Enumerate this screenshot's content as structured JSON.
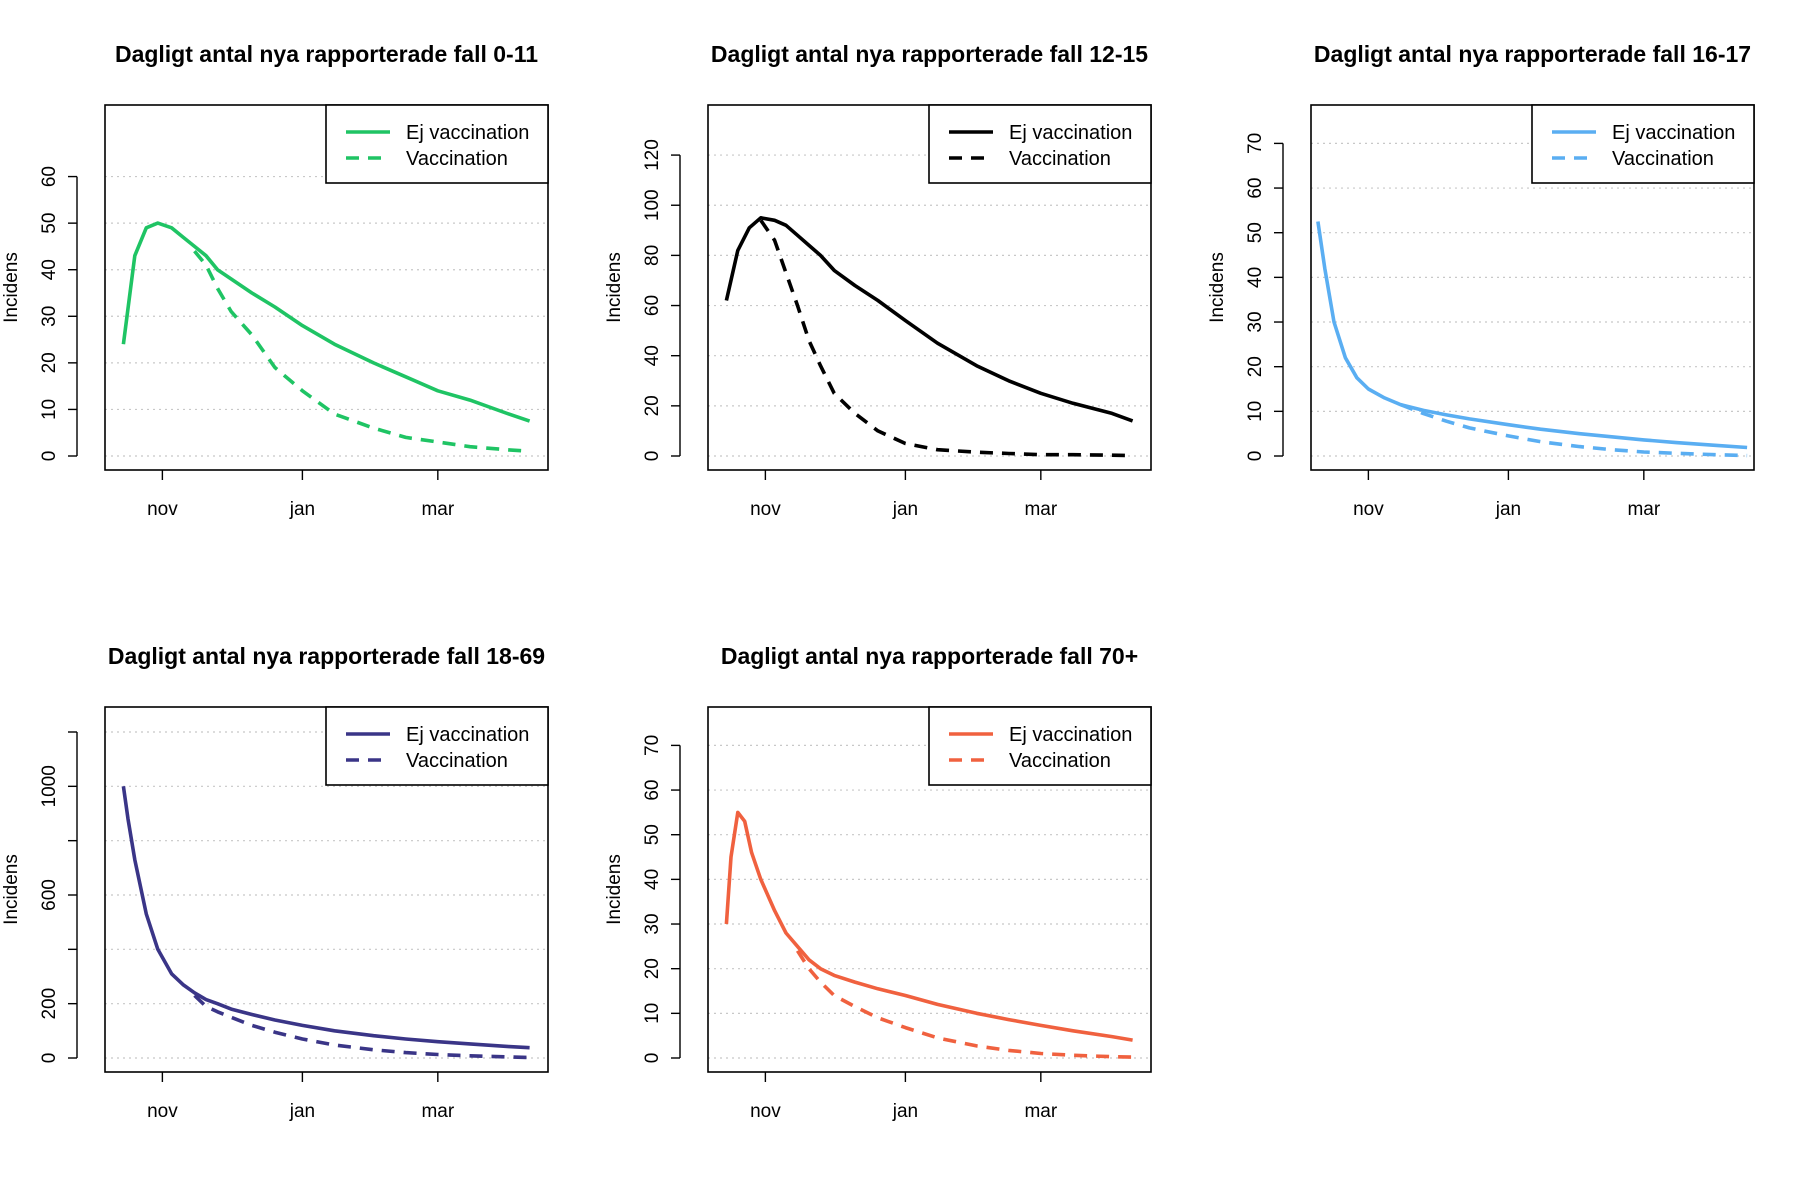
{
  "figure": {
    "legend_labels": [
      "Ej vaccination",
      "Vaccination"
    ],
    "x_tick_labels": [
      "nov",
      "jan",
      "mar"
    ]
  },
  "chart_data": [
    {
      "type": "line",
      "title": "Dagligt antal nya rapporterade fall 0-11",
      "xlabel": "",
      "ylabel": "Incidens",
      "color": "#1FC464",
      "ylim": [
        0,
        70
      ],
      "yticks": [
        0,
        10,
        20,
        30,
        40,
        50,
        60
      ],
      "xlim": [
        "2021-10-07",
        "2022-04-18"
      ],
      "xticks": [
        "2021-11-01",
        "2022-01-01",
        "2022-03-01"
      ],
      "grid": true,
      "legend_position": "top-right",
      "x": [
        "2021-10-15",
        "2021-10-20",
        "2021-10-25",
        "2021-10-30",
        "2021-11-05",
        "2021-11-10",
        "2021-11-15",
        "2021-11-20",
        "2021-11-25",
        "2021-12-01",
        "2021-12-10",
        "2021-12-20",
        "2022-01-01",
        "2022-01-15",
        "2022-02-01",
        "2022-02-15",
        "2022-03-01",
        "2022-03-15",
        "2022-04-01",
        "2022-04-10"
      ],
      "series": [
        {
          "name": "Ej vaccination",
          "line": "solid",
          "values": [
            24,
            43,
            49,
            50,
            49,
            47,
            45,
            43,
            40,
            38,
            35,
            32,
            28,
            24,
            20,
            17,
            14,
            12,
            9,
            7.5
          ]
        },
        {
          "name": "Vaccination",
          "line": "dashed",
          "values": [
            null,
            null,
            null,
            null,
            null,
            null,
            44,
            41,
            36,
            31,
            26,
            19,
            14,
            9,
            6,
            4,
            3,
            2,
            1.3,
            1
          ]
        }
      ]
    },
    {
      "type": "line",
      "title": "Dagligt antal nya rapporterade fall 12-15",
      "xlabel": "",
      "ylabel": "Incidens",
      "color": "#000000",
      "ylim": [
        0,
        130
      ],
      "yticks": [
        0,
        20,
        40,
        60,
        80,
        100,
        120
      ],
      "xlim": [
        "2021-10-07",
        "2022-04-18"
      ],
      "xticks": [
        "2021-11-01",
        "2022-01-01",
        "2022-03-01"
      ],
      "grid": true,
      "legend_position": "top-right",
      "x": [
        "2021-10-15",
        "2021-10-20",
        "2021-10-25",
        "2021-10-30",
        "2021-11-05",
        "2021-11-10",
        "2021-11-15",
        "2021-11-20",
        "2021-11-25",
        "2021-12-01",
        "2021-12-10",
        "2021-12-20",
        "2022-01-01",
        "2022-01-15",
        "2022-02-01",
        "2022-02-15",
        "2022-03-01",
        "2022-03-15",
        "2022-04-01",
        "2022-04-10"
      ],
      "series": [
        {
          "name": "Ej vaccination",
          "line": "solid",
          "values": [
            62,
            82,
            91,
            95,
            94,
            92,
            88,
            84,
            80,
            74,
            68,
            62,
            54,
            45,
            36,
            30,
            25,
            21,
            17,
            14
          ]
        },
        {
          "name": "Vaccination",
          "line": "dashed",
          "values": [
            null,
            null,
            null,
            94,
            86,
            73,
            60,
            46,
            36,
            25,
            17,
            10,
            5,
            2.5,
            1.5,
            1,
            0.5,
            0.5,
            0.3,
            0.2
          ]
        }
      ]
    },
    {
      "type": "line",
      "title": "Dagligt antal nya rapporterade fall 16-17",
      "xlabel": "",
      "ylabel": "Incidens",
      "color": "#5AAEF2",
      "ylim": [
        0,
        73
      ],
      "yticks": [
        0,
        10,
        20,
        30,
        40,
        50,
        60,
        70
      ],
      "xlim": [
        "2021-10-07",
        "2022-04-18"
      ],
      "xticks": [
        "2021-11-01",
        "2022-01-01",
        "2022-03-01"
      ],
      "grid": true,
      "legend_position": "top-right",
      "x": [
        "2021-10-10",
        "2021-10-13",
        "2021-10-17",
        "2021-10-22",
        "2021-10-27",
        "2021-11-01",
        "2021-11-08",
        "2021-11-15",
        "2021-11-25",
        "2021-12-05",
        "2021-12-15",
        "2022-01-01",
        "2022-01-15",
        "2022-02-01",
        "2022-02-15",
        "2022-03-01",
        "2022-03-15",
        "2022-04-01",
        "2022-04-15"
      ],
      "series": [
        {
          "name": "Ej vaccination",
          "line": "solid",
          "values": [
            52.5,
            42,
            30,
            22,
            17.5,
            15,
            13,
            11.5,
            10.2,
            9.2,
            8.3,
            7,
            6,
            5,
            4.3,
            3.6,
            3,
            2.4,
            1.9
          ]
        },
        {
          "name": "Vaccination",
          "line": "dashed",
          "values": [
            null,
            null,
            null,
            null,
            null,
            null,
            null,
            11.5,
            9.5,
            7.8,
            6.3,
            4.5,
            3.2,
            2.1,
            1.4,
            0.9,
            0.6,
            0.3,
            0.1
          ]
        }
      ]
    },
    {
      "type": "line",
      "title": "Dagligt antal nya rapporterade fall 18-69",
      "xlabel": "",
      "ylabel": "Incidens",
      "color": "#3A3587",
      "ylim": [
        0,
        1200
      ],
      "yticks": [
        0,
        200,
        600,
        1000
      ],
      "minor_yticks": [
        400,
        800,
        1200
      ],
      "xlim": [
        "2021-10-07",
        "2022-04-18"
      ],
      "xticks": [
        "2021-11-01",
        "2022-01-01",
        "2022-03-01"
      ],
      "grid": true,
      "legend_position": "top-right",
      "x": [
        "2021-10-15",
        "2021-10-17",
        "2021-10-20",
        "2021-10-25",
        "2021-10-30",
        "2021-11-05",
        "2021-11-10",
        "2021-11-15",
        "2021-11-20",
        "2021-11-25",
        "2021-12-01",
        "2021-12-10",
        "2021-12-20",
        "2022-01-01",
        "2022-01-15",
        "2022-02-01",
        "2022-02-15",
        "2022-03-01",
        "2022-03-15",
        "2022-04-01",
        "2022-04-10"
      ],
      "series": [
        {
          "name": "Ej vaccination",
          "line": "solid",
          "values": [
            1000,
            880,
            730,
            530,
            400,
            310,
            270,
            240,
            215,
            200,
            180,
            160,
            140,
            120,
            100,
            82,
            70,
            60,
            52,
            42,
            38
          ]
        },
        {
          "name": "Vaccination",
          "line": "dashed",
          "values": [
            null,
            null,
            null,
            null,
            null,
            null,
            null,
            230,
            190,
            170,
            150,
            120,
            95,
            70,
            48,
            30,
            20,
            13,
            8,
            4,
            2
          ]
        }
      ]
    },
    {
      "type": "line",
      "title": "Dagligt antal nya rapporterade fall 70+",
      "xlabel": "",
      "ylabel": "Incidens",
      "color": "#F0613F",
      "ylim": [
        0,
        73
      ],
      "yticks": [
        0,
        10,
        20,
        30,
        40,
        50,
        60,
        70
      ],
      "xlim": [
        "2021-10-07",
        "2022-04-18"
      ],
      "xticks": [
        "2021-11-01",
        "2022-01-01",
        "2022-03-01"
      ],
      "grid": true,
      "legend_position": "top-right",
      "x": [
        "2021-10-15",
        "2021-10-17",
        "2021-10-20",
        "2021-10-23",
        "2021-10-26",
        "2021-10-30",
        "2021-11-05",
        "2021-11-10",
        "2021-11-15",
        "2021-11-20",
        "2021-11-25",
        "2021-12-01",
        "2021-12-10",
        "2021-12-20",
        "2022-01-01",
        "2022-01-15",
        "2022-02-01",
        "2022-02-15",
        "2022-03-01",
        "2022-03-15",
        "2022-04-01",
        "2022-04-10"
      ],
      "series": [
        {
          "name": "Ej vaccination",
          "line": "solid",
          "values": [
            30,
            45,
            55,
            53,
            46,
            40,
            33,
            28,
            25,
            22,
            20,
            18.5,
            17,
            15.5,
            14,
            12,
            10,
            8.6,
            7.3,
            6.1,
            4.8,
            4
          ]
        },
        {
          "name": "Vaccination",
          "line": "dashed",
          "values": [
            null,
            null,
            null,
            null,
            null,
            null,
            null,
            null,
            24,
            20,
            17,
            14,
            11.5,
            9,
            6.8,
            4.5,
            2.7,
            1.7,
            1,
            0.6,
            0.3,
            0.2
          ]
        }
      ]
    }
  ]
}
